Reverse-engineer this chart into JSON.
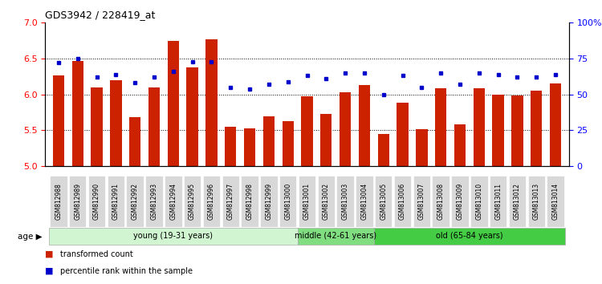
{
  "title": "GDS3942 / 228419_at",
  "samples": [
    "GSM812988",
    "GSM812989",
    "GSM812990",
    "GSM812991",
    "GSM812992",
    "GSM812993",
    "GSM812994",
    "GSM812995",
    "GSM812996",
    "GSM812997",
    "GSM812998",
    "GSM812999",
    "GSM813000",
    "GSM813001",
    "GSM813002",
    "GSM813003",
    "GSM813004",
    "GSM813005",
    "GSM813006",
    "GSM813007",
    "GSM813008",
    "GSM813009",
    "GSM813010",
    "GSM813011",
    "GSM813012",
    "GSM813013",
    "GSM813014"
  ],
  "transformed_count": [
    6.27,
    6.47,
    6.1,
    6.2,
    5.68,
    6.1,
    6.75,
    6.38,
    6.77,
    5.55,
    5.53,
    5.7,
    5.63,
    5.97,
    5.73,
    6.03,
    6.13,
    5.45,
    5.88,
    5.52,
    6.09,
    5.58,
    6.09,
    6.0,
    5.98,
    6.05,
    6.15
  ],
  "percentile_rank": [
    72,
    75,
    62,
    64,
    58,
    62,
    66,
    73,
    73,
    55,
    54,
    57,
    59,
    63,
    61,
    65,
    65,
    50,
    63,
    55,
    65,
    57,
    65,
    64,
    62,
    62,
    64
  ],
  "groups": [
    {
      "label": "young (19-31 years)",
      "start": 0,
      "end": 13,
      "color": "#d0f5d0"
    },
    {
      "label": "middle (42-61 years)",
      "start": 13,
      "end": 17,
      "color": "#80dd80"
    },
    {
      "label": "old (65-84 years)",
      "start": 17,
      "end": 27,
      "color": "#44cc44"
    }
  ],
  "bar_color": "#cc2200",
  "dot_color": "#0000cc",
  "ylim_left": [
    5.0,
    7.0
  ],
  "ylim_right": [
    0,
    100
  ],
  "yticks_left": [
    5.0,
    5.5,
    6.0,
    6.5,
    7.0
  ],
  "yticks_right": [
    0,
    25,
    50,
    75,
    100
  ],
  "ytick_labels_right": [
    "0",
    "25",
    "50",
    "75",
    "100%"
  ],
  "grid_values": [
    5.5,
    6.0,
    6.5
  ],
  "tick_bg_color": "#d8d8d8",
  "plot_bg": "#ffffff",
  "fig_bg": "#ffffff"
}
